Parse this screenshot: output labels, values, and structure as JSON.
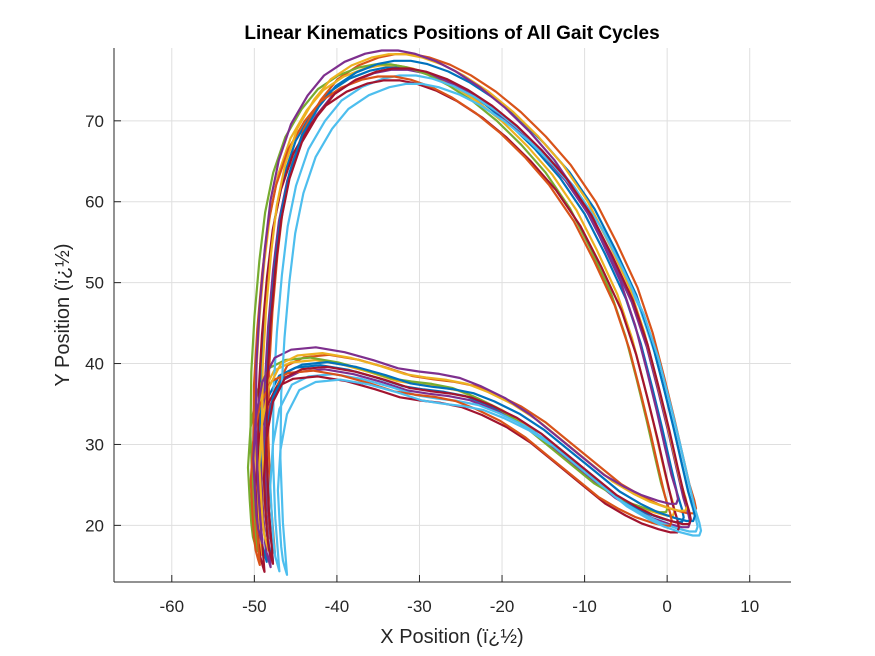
{
  "chart_data": {
    "type": "line",
    "title": "Linear Kinematics Positions of All Gait Cycles",
    "xlabel": "X Position (ï¿½)",
    "ylabel": "Y Position (ï¿½)",
    "xlim": [
      -67,
      15
    ],
    "ylim": [
      13,
      79
    ],
    "xticks": [
      -60,
      -50,
      -40,
      -30,
      -20,
      -10,
      0,
      10
    ],
    "yticks": [
      20,
      30,
      40,
      50,
      60,
      70
    ],
    "grid": true,
    "legend": "none",
    "base_loop": {
      "x": [
        -48.5,
        -49,
        -49.3,
        -49.2,
        -48.8,
        -48.2,
        -47.5,
        -46.5,
        -45,
        -43,
        -41,
        -38.5,
        -36,
        -34,
        -32,
        -30,
        -27.5,
        -25,
        -22,
        -19,
        -16,
        -13,
        -10,
        -7.5,
        -5,
        -3.2,
        -1.8,
        -0.6,
        0.4,
        1.2,
        1.8,
        2.0,
        1.8,
        1.0,
        -0.5,
        -2.5,
        -4.5,
        -7,
        -10,
        -13,
        -16,
        -19,
        -22,
        -24.5,
        -27,
        -29.5,
        -32,
        -35,
        -38.5,
        -42,
        -45,
        -47,
        -48.5,
        -49.3,
        -49.6,
        -49.4,
        -49.2,
        -49.0,
        -48.7,
        -48.5
      ],
      "y": [
        15.5,
        22,
        30,
        38,
        45,
        52,
        58,
        63,
        67.5,
        71,
        73.5,
        75.2,
        76.2,
        76.6,
        76.6,
        76.2,
        75.3,
        74,
        72,
        69.5,
        66.5,
        63,
        58.5,
        53.5,
        48,
        42.5,
        37,
        32,
        27.5,
        24,
        22,
        21,
        20.4,
        20.4,
        20.8,
        21.5,
        22.5,
        24,
        26.5,
        29,
        31.5,
        33.5,
        35,
        36,
        36.5,
        36.8,
        37.2,
        38.2,
        39.2,
        39.8,
        39.5,
        38.5,
        35.5,
        31,
        26,
        22,
        19,
        17.3,
        16.2,
        15.5
      ]
    },
    "series": [
      {
        "color": "#0072BD",
        "offset_x": 0.0,
        "offset_y": 0.0,
        "scale": 1.0
      },
      {
        "color": "#D95319",
        "offset_x": 1.2,
        "offset_y": 1.3,
        "scale": 1.01
      },
      {
        "color": "#EDB120",
        "offset_x": -0.8,
        "offset_y": 0.6,
        "scale": 0.99
      },
      {
        "color": "#7E2F8E",
        "offset_x": 0.6,
        "offset_y": -0.5,
        "scale": 1.006
      },
      {
        "color": "#77AC30",
        "offset_x": -1.5,
        "offset_y": 0.9,
        "scale": 0.985
      },
      {
        "color": "#4DBEEE",
        "offset_x": 1.6,
        "offset_y": -1.1,
        "scale": 1.003
      },
      {
        "color": "#A2142F",
        "offset_x": -0.4,
        "offset_y": -1.4,
        "scale": 0.994
      },
      {
        "color": "#0072BD",
        "offset_x": 1.0,
        "offset_y": 0.4,
        "scale": 1.012
      },
      {
        "color": "#D95319",
        "offset_x": -1.1,
        "offset_y": -0.7,
        "scale": 0.988
      },
      {
        "color": "#EDB120",
        "offset_x": 0.3,
        "offset_y": 1.5,
        "scale": 1.004
      },
      {
        "color": "#7E2F8E",
        "offset_x": -0.6,
        "offset_y": 2.2,
        "scale": 0.997
      },
      {
        "color": "#4DBEEE",
        "offset_x": 2.3,
        "offset_y": -1.8,
        "scale": 0.993
      },
      {
        "color": "#A2142F",
        "offset_x": 0.8,
        "offset_y": -0.2,
        "scale": 1.002
      }
    ]
  }
}
